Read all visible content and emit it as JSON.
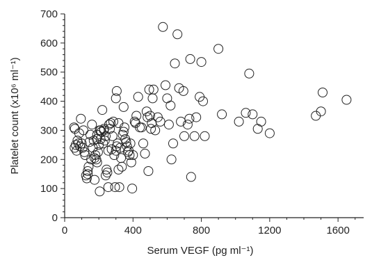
{
  "chart_data": {
    "type": "scatter",
    "xlabel": "Serum VEGF (pg ml⁻¹)",
    "ylabel": "Platelet count (x10⁶ ml⁻¹)",
    "xlim": [
      0,
      1750
    ],
    "ylim": [
      0,
      700
    ],
    "x_ticks": [
      0,
      400,
      800,
      1200,
      1600
    ],
    "y_ticks": [
      0,
      100,
      200,
      300,
      400,
      500,
      600,
      700
    ],
    "grid": false,
    "marker": "open-circle",
    "points": [
      [
        55,
        310
      ],
      [
        60,
        305
      ],
      [
        58,
        240
      ],
      [
        65,
        250
      ],
      [
        70,
        230
      ],
      [
        75,
        265
      ],
      [
        80,
        255
      ],
      [
        85,
        290
      ],
      [
        90,
        245
      ],
      [
        95,
        340
      ],
      [
        100,
        255
      ],
      [
        105,
        240
      ],
      [
        110,
        300
      ],
      [
        115,
        225
      ],
      [
        120,
        215
      ],
      [
        125,
        145
      ],
      [
        130,
        135
      ],
      [
        135,
        160
      ],
      [
        140,
        175
      ],
      [
        145,
        260
      ],
      [
        150,
        285
      ],
      [
        155,
        200
      ],
      [
        160,
        320
      ],
      [
        165,
        240
      ],
      [
        170,
        265
      ],
      [
        175,
        205
      ],
      [
        180,
        215
      ],
      [
        185,
        200
      ],
      [
        188,
        270
      ],
      [
        190,
        285
      ],
      [
        195,
        225
      ],
      [
        200,
        250
      ],
      [
        205,
        300
      ],
      [
        210,
        270
      ],
      [
        215,
        295
      ],
      [
        220,
        370
      ],
      [
        225,
        255
      ],
      [
        230,
        305
      ],
      [
        235,
        265
      ],
      [
        240,
        145
      ],
      [
        245,
        165
      ],
      [
        250,
        155
      ],
      [
        255,
        230
      ],
      [
        260,
        320
      ],
      [
        265,
        305
      ],
      [
        270,
        325
      ],
      [
        275,
        235
      ],
      [
        280,
        280
      ],
      [
        285,
        330
      ],
      [
        290,
        215
      ],
      [
        295,
        105
      ],
      [
        300,
        230
      ],
      [
        305,
        245
      ],
      [
        310,
        255
      ],
      [
        315,
        165
      ],
      [
        320,
        105
      ],
      [
        325,
        240
      ],
      [
        330,
        205
      ],
      [
        335,
        175
      ],
      [
        340,
        285
      ],
      [
        345,
        295
      ],
      [
        350,
        310
      ],
      [
        355,
        270
      ],
      [
        360,
        260
      ],
      [
        365,
        245
      ],
      [
        370,
        225
      ],
      [
        375,
        230
      ],
      [
        380,
        215
      ],
      [
        385,
        255
      ],
      [
        390,
        190
      ],
      [
        395,
        100
      ],
      [
        400,
        215
      ],
      [
        410,
        330
      ],
      [
        415,
        325
      ],
      [
        420,
        350
      ],
      [
        430,
        415
      ],
      [
        440,
        310
      ],
      [
        450,
        310
      ],
      [
        460,
        255
      ],
      [
        470,
        220
      ],
      [
        480,
        365
      ],
      [
        485,
        345
      ],
      [
        490,
        160
      ],
      [
        495,
        440
      ],
      [
        500,
        350
      ],
      [
        505,
        305
      ],
      [
        510,
        325
      ],
      [
        515,
        410
      ],
      [
        520,
        440
      ],
      [
        530,
        300
      ],
      [
        545,
        345
      ],
      [
        560,
        330
      ],
      [
        575,
        655
      ],
      [
        590,
        455
      ],
      [
        600,
        410
      ],
      [
        610,
        320
      ],
      [
        620,
        385
      ],
      [
        625,
        200
      ],
      [
        635,
        255
      ],
      [
        645,
        530
      ],
      [
        660,
        630
      ],
      [
        670,
        445
      ],
      [
        680,
        330
      ],
      [
        695,
        435
      ],
      [
        700,
        280
      ],
      [
        720,
        320
      ],
      [
        730,
        340
      ],
      [
        735,
        545
      ],
      [
        740,
        140
      ],
      [
        760,
        280
      ],
      [
        770,
        345
      ],
      [
        790,
        415
      ],
      [
        800,
        535
      ],
      [
        810,
        400
      ],
      [
        820,
        280
      ],
      [
        900,
        580
      ],
      [
        920,
        355
      ],
      [
        1020,
        330
      ],
      [
        1060,
        360
      ],
      [
        1080,
        495
      ],
      [
        1100,
        355
      ],
      [
        1130,
        305
      ],
      [
        1150,
        330
      ],
      [
        1200,
        290
      ],
      [
        1470,
        350
      ],
      [
        1500,
        365
      ],
      [
        1510,
        430
      ],
      [
        1650,
        405
      ],
      [
        300,
        410
      ],
      [
        305,
        435
      ],
      [
        315,
        325
      ],
      [
        345,
        380
      ],
      [
        255,
        105
      ],
      [
        205,
        90
      ],
      [
        175,
        130
      ],
      [
        135,
        150
      ],
      [
        190,
        190
      ],
      [
        210,
        300
      ],
      [
        230,
        300
      ],
      [
        240,
        280
      ]
    ]
  }
}
